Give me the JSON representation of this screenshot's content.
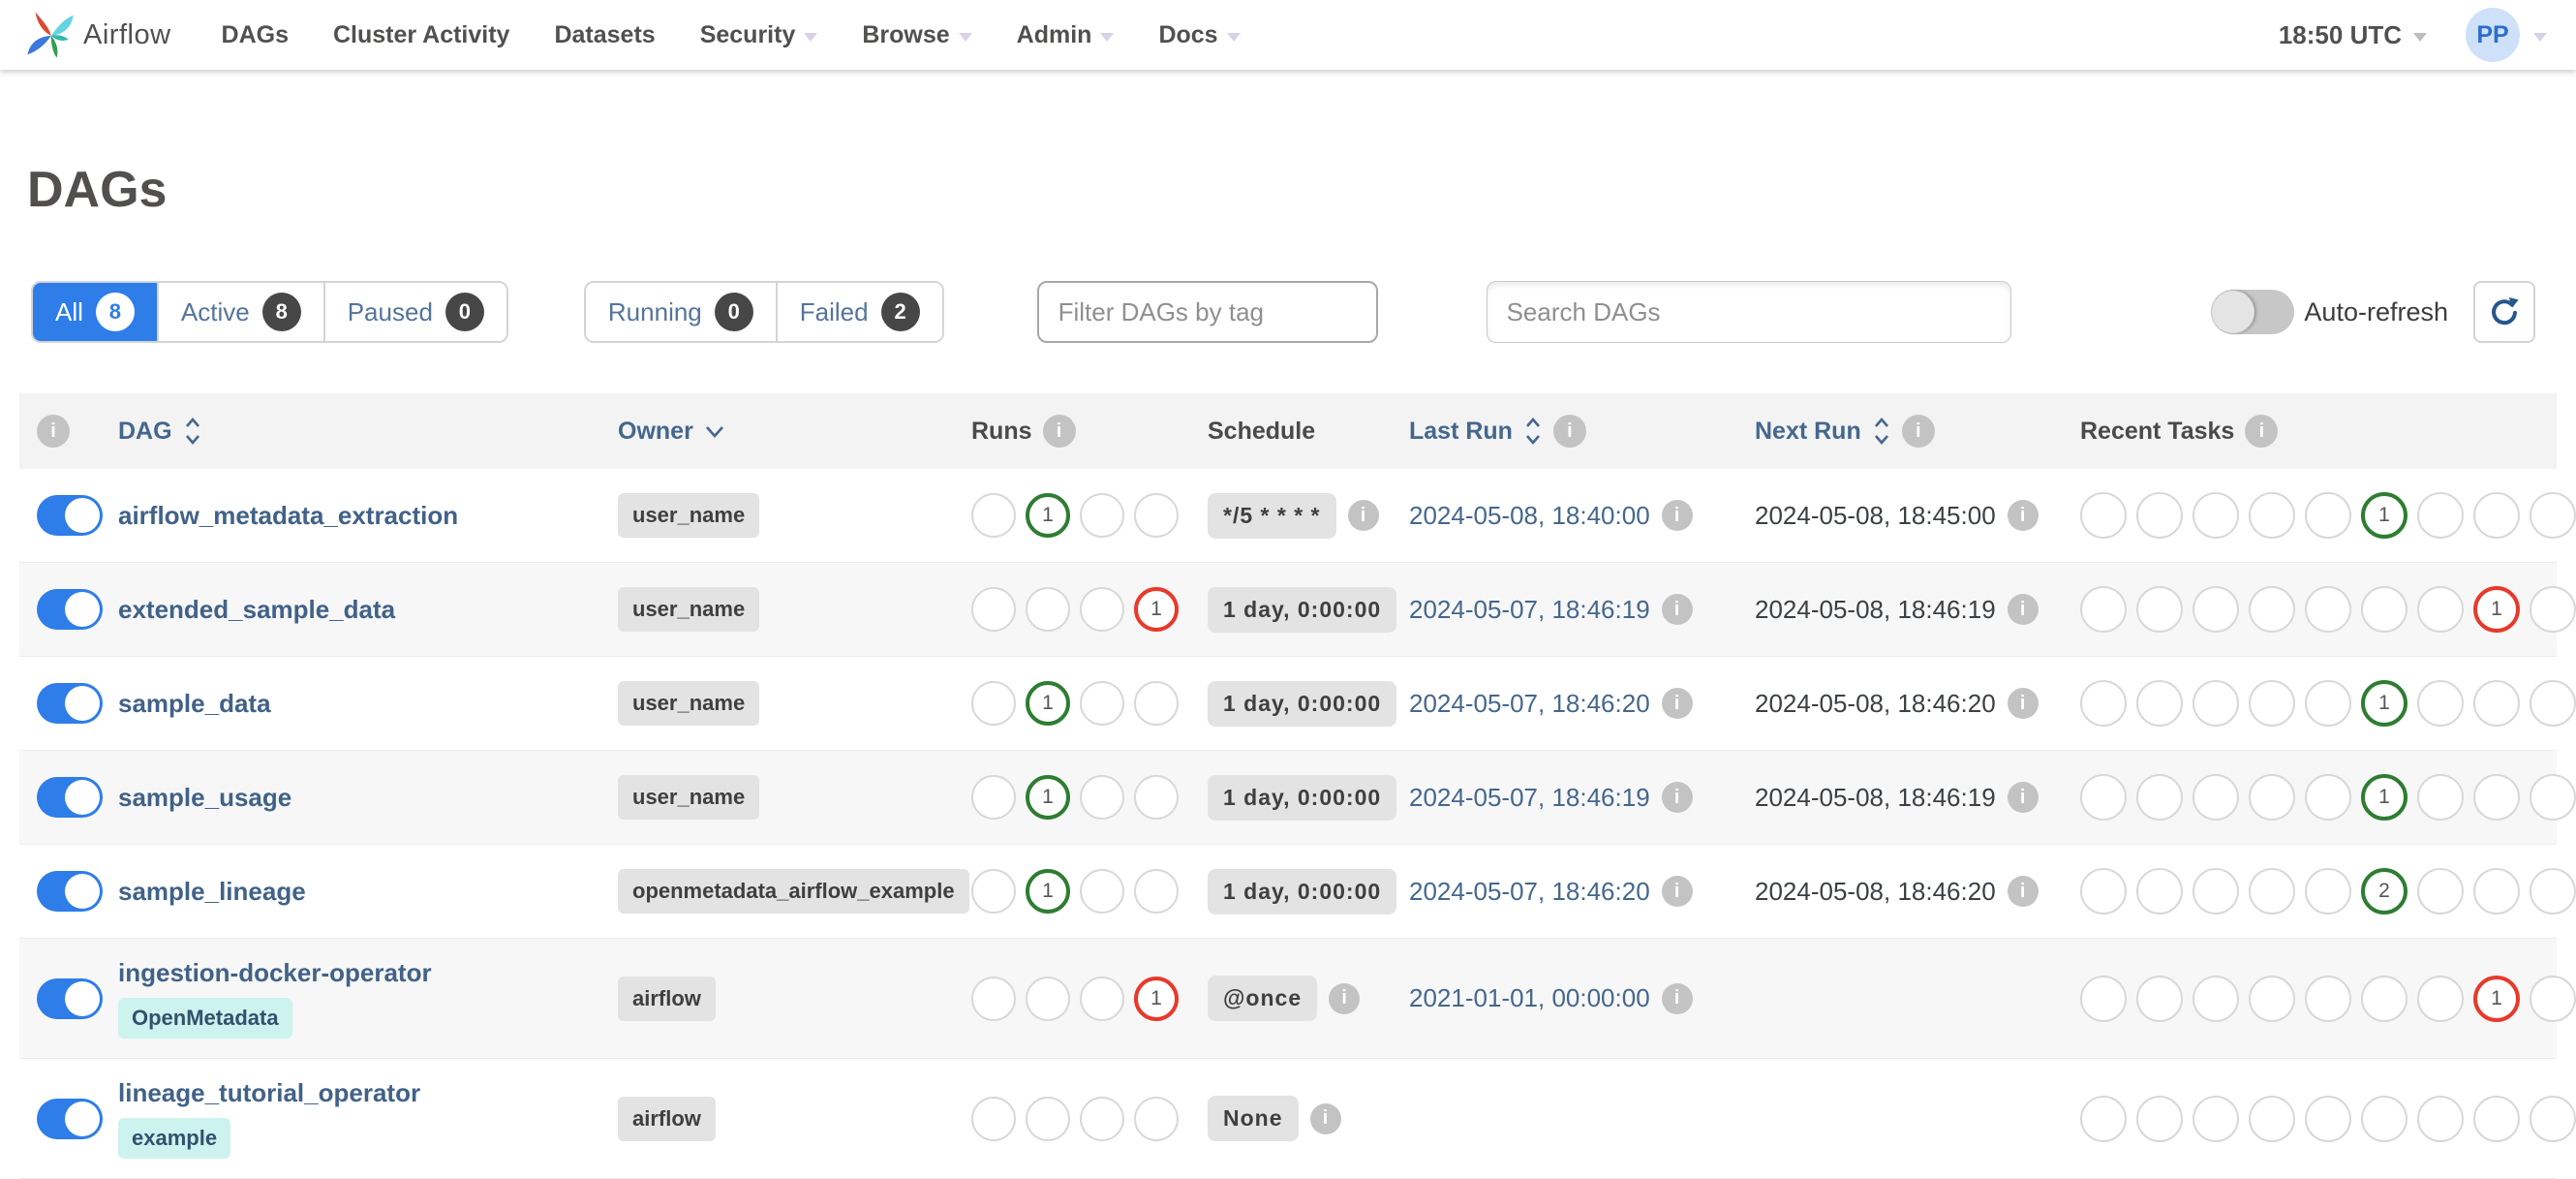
{
  "navbar": {
    "brand": "Airflow",
    "items": [
      {
        "label": "DAGs",
        "caret": false
      },
      {
        "label": "Cluster Activity",
        "caret": false
      },
      {
        "label": "Datasets",
        "caret": false
      },
      {
        "label": "Security",
        "caret": true
      },
      {
        "label": "Browse",
        "caret": true
      },
      {
        "label": "Admin",
        "caret": true
      },
      {
        "label": "Docs",
        "caret": true
      }
    ],
    "clock": "18:50 UTC",
    "avatar_initials": "PP"
  },
  "page": {
    "title": "DAGs"
  },
  "filters": {
    "dag_tabs": [
      {
        "label": "All",
        "count": "8",
        "active": true
      },
      {
        "label": "Active",
        "count": "8",
        "active": false
      },
      {
        "label": "Paused",
        "count": "0",
        "active": false
      }
    ],
    "state_tabs": [
      {
        "label": "Running",
        "count": "0"
      },
      {
        "label": "Failed",
        "count": "2"
      }
    ],
    "tag_filter_placeholder": "Filter DAGs by tag",
    "search_placeholder": "Search DAGs",
    "auto_refresh_label": "Auto-refresh",
    "auto_refresh_on": false
  },
  "table": {
    "columns": [
      {
        "label": "DAG"
      },
      {
        "label": "Owner"
      },
      {
        "label": "Runs"
      },
      {
        "label": "Schedule"
      },
      {
        "label": "Last Run"
      },
      {
        "label": "Next Run"
      },
      {
        "label": "Recent Tasks"
      }
    ],
    "runs_slots": 4,
    "recent_slots": 9,
    "rows": [
      {
        "name": "airflow_metadata_extraction",
        "tag": null,
        "owner": "user_name",
        "enabled": true,
        "runs": [
          {
            "index": 1,
            "state": "success",
            "count": "1"
          }
        ],
        "schedule": "*/5 * * * *",
        "schedule_info": true,
        "last_run": "2024-05-08, 18:40:00",
        "next_run": "2024-05-08, 18:45:00",
        "recent": [
          {
            "index": 5,
            "state": "success",
            "count": "1"
          }
        ]
      },
      {
        "name": "extended_sample_data",
        "tag": null,
        "owner": "user_name",
        "enabled": true,
        "runs": [
          {
            "index": 3,
            "state": "failed",
            "count": "1"
          }
        ],
        "schedule": "1 day, 0:00:00",
        "schedule_info": false,
        "last_run": "2024-05-07, 18:46:19",
        "next_run": "2024-05-08, 18:46:19",
        "recent": [
          {
            "index": 7,
            "state": "failed",
            "count": "1"
          }
        ]
      },
      {
        "name": "sample_data",
        "tag": null,
        "owner": "user_name",
        "enabled": true,
        "runs": [
          {
            "index": 1,
            "state": "success",
            "count": "1"
          }
        ],
        "schedule": "1 day, 0:00:00",
        "schedule_info": false,
        "last_run": "2024-05-07, 18:46:20",
        "next_run": "2024-05-08, 18:46:20",
        "recent": [
          {
            "index": 5,
            "state": "success",
            "count": "1"
          }
        ]
      },
      {
        "name": "sample_usage",
        "tag": null,
        "owner": "user_name",
        "enabled": true,
        "runs": [
          {
            "index": 1,
            "state": "success",
            "count": "1"
          }
        ],
        "schedule": "1 day, 0:00:00",
        "schedule_info": false,
        "last_run": "2024-05-07, 18:46:19",
        "next_run": "2024-05-08, 18:46:19",
        "recent": [
          {
            "index": 5,
            "state": "success",
            "count": "1"
          }
        ]
      },
      {
        "name": "sample_lineage",
        "tag": null,
        "owner": "openmetadata_airflow_example",
        "enabled": true,
        "runs": [
          {
            "index": 1,
            "state": "success",
            "count": "1"
          }
        ],
        "schedule": "1 day, 0:00:00",
        "schedule_info": false,
        "last_run": "2024-05-07, 18:46:20",
        "next_run": "2024-05-08, 18:46:20",
        "recent": [
          {
            "index": 5,
            "state": "success",
            "count": "2"
          }
        ]
      },
      {
        "name": "ingestion-docker-operator",
        "tag": "OpenMetadata",
        "owner": "airflow",
        "enabled": true,
        "runs": [
          {
            "index": 3,
            "state": "failed",
            "count": "1"
          }
        ],
        "schedule": "@once",
        "schedule_info": true,
        "last_run": "2021-01-01, 00:00:00",
        "next_run": null,
        "recent": [
          {
            "index": 7,
            "state": "failed",
            "count": "1"
          }
        ]
      },
      {
        "name": "lineage_tutorial_operator",
        "tag": "example",
        "owner": "airflow",
        "enabled": true,
        "runs": [],
        "schedule": "None",
        "schedule_info": true,
        "last_run": null,
        "next_run": null,
        "recent": []
      }
    ]
  },
  "colors": {
    "accent_blue": "#2e7de9",
    "link_blue": "#44678e",
    "success_green": "#2e7d32",
    "failed_red": "#e8392b",
    "tag_teal": "#cdf3ee",
    "text_gray": "#51504f"
  }
}
